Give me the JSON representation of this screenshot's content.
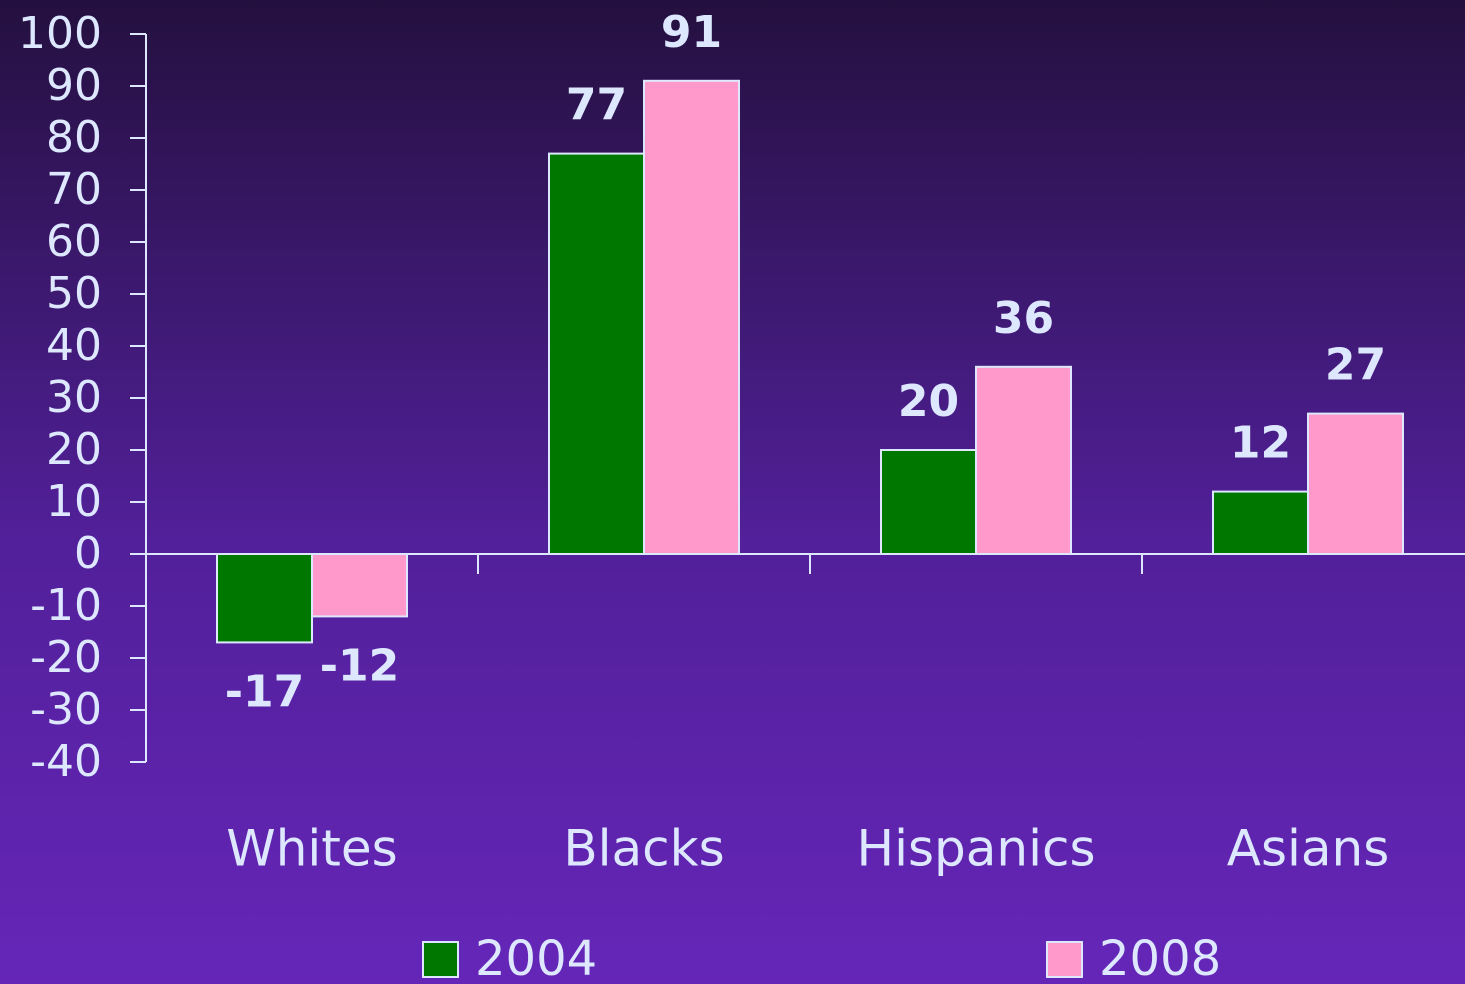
{
  "chart_data": {
    "type": "bar",
    "categories": [
      "Whites",
      "Blacks",
      "Hispanics",
      "Asians"
    ],
    "series": [
      {
        "name": "2004",
        "color": "#007800",
        "values": [
          -17,
          77,
          20,
          12
        ]
      },
      {
        "name": "2008",
        "color": "#ff99cc",
        "values": [
          -12,
          91,
          36,
          27
        ]
      }
    ],
    "ylim": [
      -40,
      100
    ],
    "yticks": [
      -40,
      -30,
      -20,
      -10,
      0,
      10,
      20,
      30,
      40,
      50,
      60,
      70,
      80,
      90,
      100
    ],
    "grid": false,
    "legend": "bottom"
  }
}
